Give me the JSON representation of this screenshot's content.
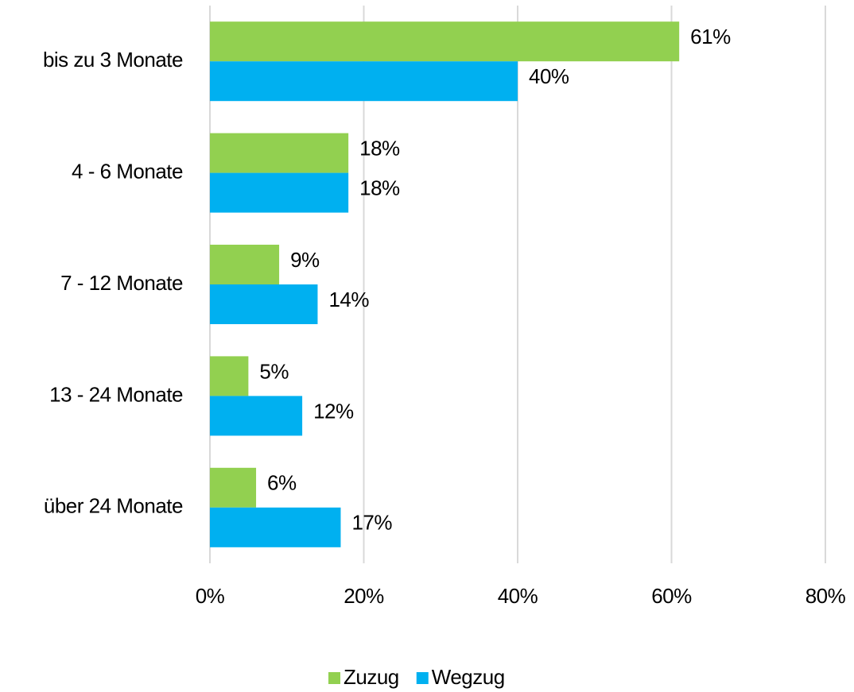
{
  "chart_data": {
    "type": "hbar",
    "categories": [
      "bis zu 3 Monate",
      "4 - 6 Monate",
      "7 - 12 Monate",
      "13 - 24 Monate",
      "über 24 Monate"
    ],
    "series": [
      {
        "name": "Zuzug",
        "color": "#92d050",
        "values": [
          61,
          18,
          9,
          5,
          6
        ],
        "value_labels": [
          "61%",
          "18%",
          "9%",
          "5%",
          "6%"
        ]
      },
      {
        "name": "Wegzug",
        "color": "#00b0f0",
        "values": [
          40,
          18,
          14,
          12,
          17
        ],
        "value_labels": [
          "40%",
          "18%",
          "14%",
          "12%",
          "17%"
        ]
      }
    ],
    "xlim": [
      0,
      80
    ],
    "xticks": [
      {
        "value": 0,
        "label": "0%"
      },
      {
        "value": 20,
        "label": "20%"
      },
      {
        "value": 40,
        "label": "40%"
      },
      {
        "value": 60,
        "label": "60%"
      },
      {
        "value": 80,
        "label": "80%"
      }
    ],
    "grid": true,
    "legend": "bottom"
  }
}
